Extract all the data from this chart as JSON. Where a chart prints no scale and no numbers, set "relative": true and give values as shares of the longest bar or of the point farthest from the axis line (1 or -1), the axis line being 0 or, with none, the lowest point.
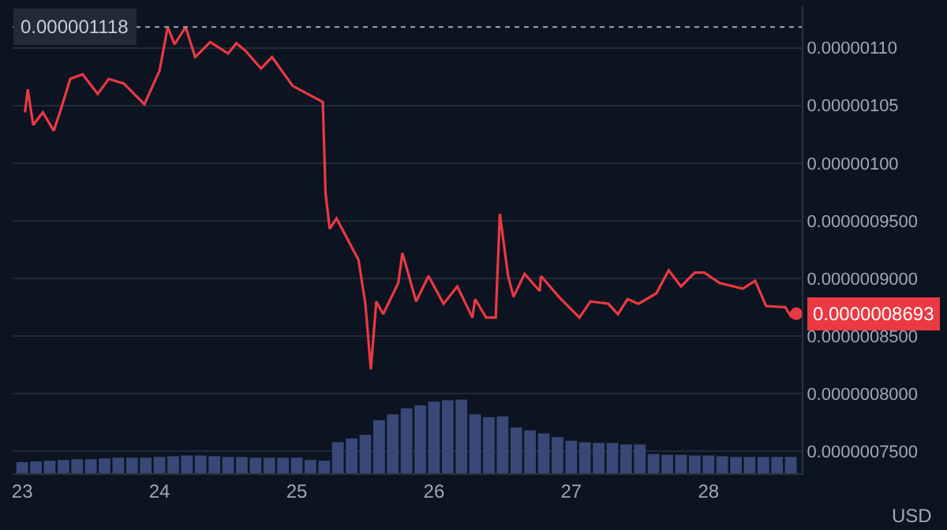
{
  "chart_data": [
    {
      "type": "line",
      "ylabel": "USD",
      "series": [
        {
          "color": "#ea3943",
          "x": [
            23.02,
            23.04,
            23.08,
            23.15,
            23.23,
            23.28,
            23.35,
            23.44,
            23.55,
            23.63,
            23.74,
            23.89,
            24.0,
            24.06,
            24.11,
            24.19,
            24.26,
            24.37,
            24.5,
            24.56,
            24.63,
            24.74,
            24.82,
            24.97,
            25.08,
            25.19,
            25.21,
            25.24,
            25.29,
            25.45,
            25.5,
            25.54,
            25.58,
            25.63,
            25.74,
            25.77,
            25.87,
            25.96,
            26.07,
            26.17,
            26.28,
            26.3,
            26.38,
            26.45,
            26.48,
            26.54,
            26.58,
            26.66,
            26.77,
            26.78,
            26.91,
            27.06,
            27.14,
            27.27,
            27.34,
            27.41,
            27.49,
            27.62,
            27.71,
            27.8,
            27.9,
            27.97,
            28.08,
            28.25,
            28.34,
            28.42,
            28.56,
            28.6,
            28.64
          ],
          "values": [
            1.044e-06,
            1.064e-06,
            1.033e-06,
            1.044e-06,
            1.028e-06,
            1.046e-06,
            1.073e-06,
            1.077e-06,
            1.06e-06,
            1.073e-06,
            1.069e-06,
            1.051e-06,
            1.08e-06,
            1.118e-06,
            1.103e-06,
            1.118e-06,
            1.092e-06,
            1.105e-06,
            1.095e-06,
            1.104e-06,
            1.097e-06,
            1.082e-06,
            1.092e-06,
            1.067e-06,
            1.06e-06,
            1.053e-06,
            9.74e-07,
            9.43e-07,
            9.52e-07,
            9.16e-07,
            8.78e-07,
            8.21e-07,
            8.8e-07,
            8.69e-07,
            8.96e-07,
            9.22e-07,
            8.8e-07,
            9.02e-07,
            8.78e-07,
            8.93e-07,
            8.66e-07,
            8.82e-07,
            8.66e-07,
            8.66e-07,
            9.56e-07,
            9.02e-07,
            8.84e-07,
            9.04e-07,
            8.89e-07,
            9.02e-07,
            8.84e-07,
            8.66e-07,
            8.8e-07,
            8.78e-07,
            8.69e-07,
            8.82e-07,
            8.78e-07,
            8.87e-07,
            9.07e-07,
            8.93e-07,
            9.05e-07,
            9.05e-07,
            8.96e-07,
            8.91e-07,
            8.98e-07,
            8.76e-07,
            8.75e-07,
            8.67e-07,
            8.693e-07
          ]
        }
      ],
      "xlim": [
        22.93,
        28.68
      ],
      "xticks": [
        23,
        24,
        25,
        26,
        27,
        28
      ],
      "ylim": [
        7.31e-07,
        1.136e-06
      ],
      "yticks": [
        {
          "value": 7.5e-07,
          "label": "0.0000007500"
        },
        {
          "value": 8e-07,
          "label": "0.0000008000"
        },
        {
          "value": 8.5e-07,
          "label": "0.0000008500"
        },
        {
          "value": 9e-07,
          "label": "0.0000009000"
        },
        {
          "value": 9.5e-07,
          "label": "0.0000009500"
        },
        {
          "value": 1e-06,
          "label": "0.00000100"
        },
        {
          "value": 1.05e-06,
          "label": "0.00000105"
        },
        {
          "value": 1.1e-06,
          "label": "0.00000110"
        }
      ],
      "grid": "y",
      "ref_lines": [
        {
          "axis": "y",
          "value": 1.118e-06,
          "label": "0.000001118",
          "line_style": "dotted",
          "color": "#a0a6b2"
        }
      ],
      "annotations": [
        {
          "text": "0.0000008693",
          "x": 28.64,
          "y": 8.693e-07
        }
      ]
    },
    {
      "type": "bar",
      "relative": true,
      "color": "#3a4878",
      "xlim": [
        22.93,
        28.68
      ],
      "x": [
        23.0,
        23.1,
        23.2,
        23.3,
        23.4,
        23.5,
        23.6,
        23.7,
        23.8,
        23.9,
        24.0,
        24.1,
        24.2,
        24.3,
        24.4,
        24.5,
        24.6,
        24.7,
        24.8,
        24.9,
        25.0,
        25.1,
        25.2,
        25.3,
        25.4,
        25.5,
        25.6,
        25.7,
        25.8,
        25.9,
        26.0,
        26.1,
        26.2,
        26.3,
        26.4,
        26.5,
        26.6,
        26.7,
        26.8,
        26.9,
        27.0,
        27.1,
        27.2,
        27.3,
        27.4,
        27.5,
        27.6,
        27.7,
        27.8,
        27.9,
        28.0,
        28.1,
        28.2,
        28.3,
        28.4,
        28.5,
        28.6
      ],
      "values": [
        0.15,
        0.16,
        0.17,
        0.18,
        0.19,
        0.19,
        0.2,
        0.21,
        0.21,
        0.21,
        0.22,
        0.23,
        0.24,
        0.24,
        0.23,
        0.22,
        0.22,
        0.21,
        0.21,
        0.21,
        0.21,
        0.18,
        0.17,
        0.42,
        0.47,
        0.52,
        0.72,
        0.8,
        0.88,
        0.92,
        0.97,
        0.99,
        1,
        0.8,
        0.76,
        0.77,
        0.62,
        0.58,
        0.54,
        0.49,
        0.44,
        0.42,
        0.41,
        0.41,
        0.39,
        0.39,
        0.26,
        0.25,
        0.25,
        0.24,
        0.24,
        0.23,
        0.22,
        0.22,
        0.22,
        0.22,
        0.22
      ]
    }
  ]
}
